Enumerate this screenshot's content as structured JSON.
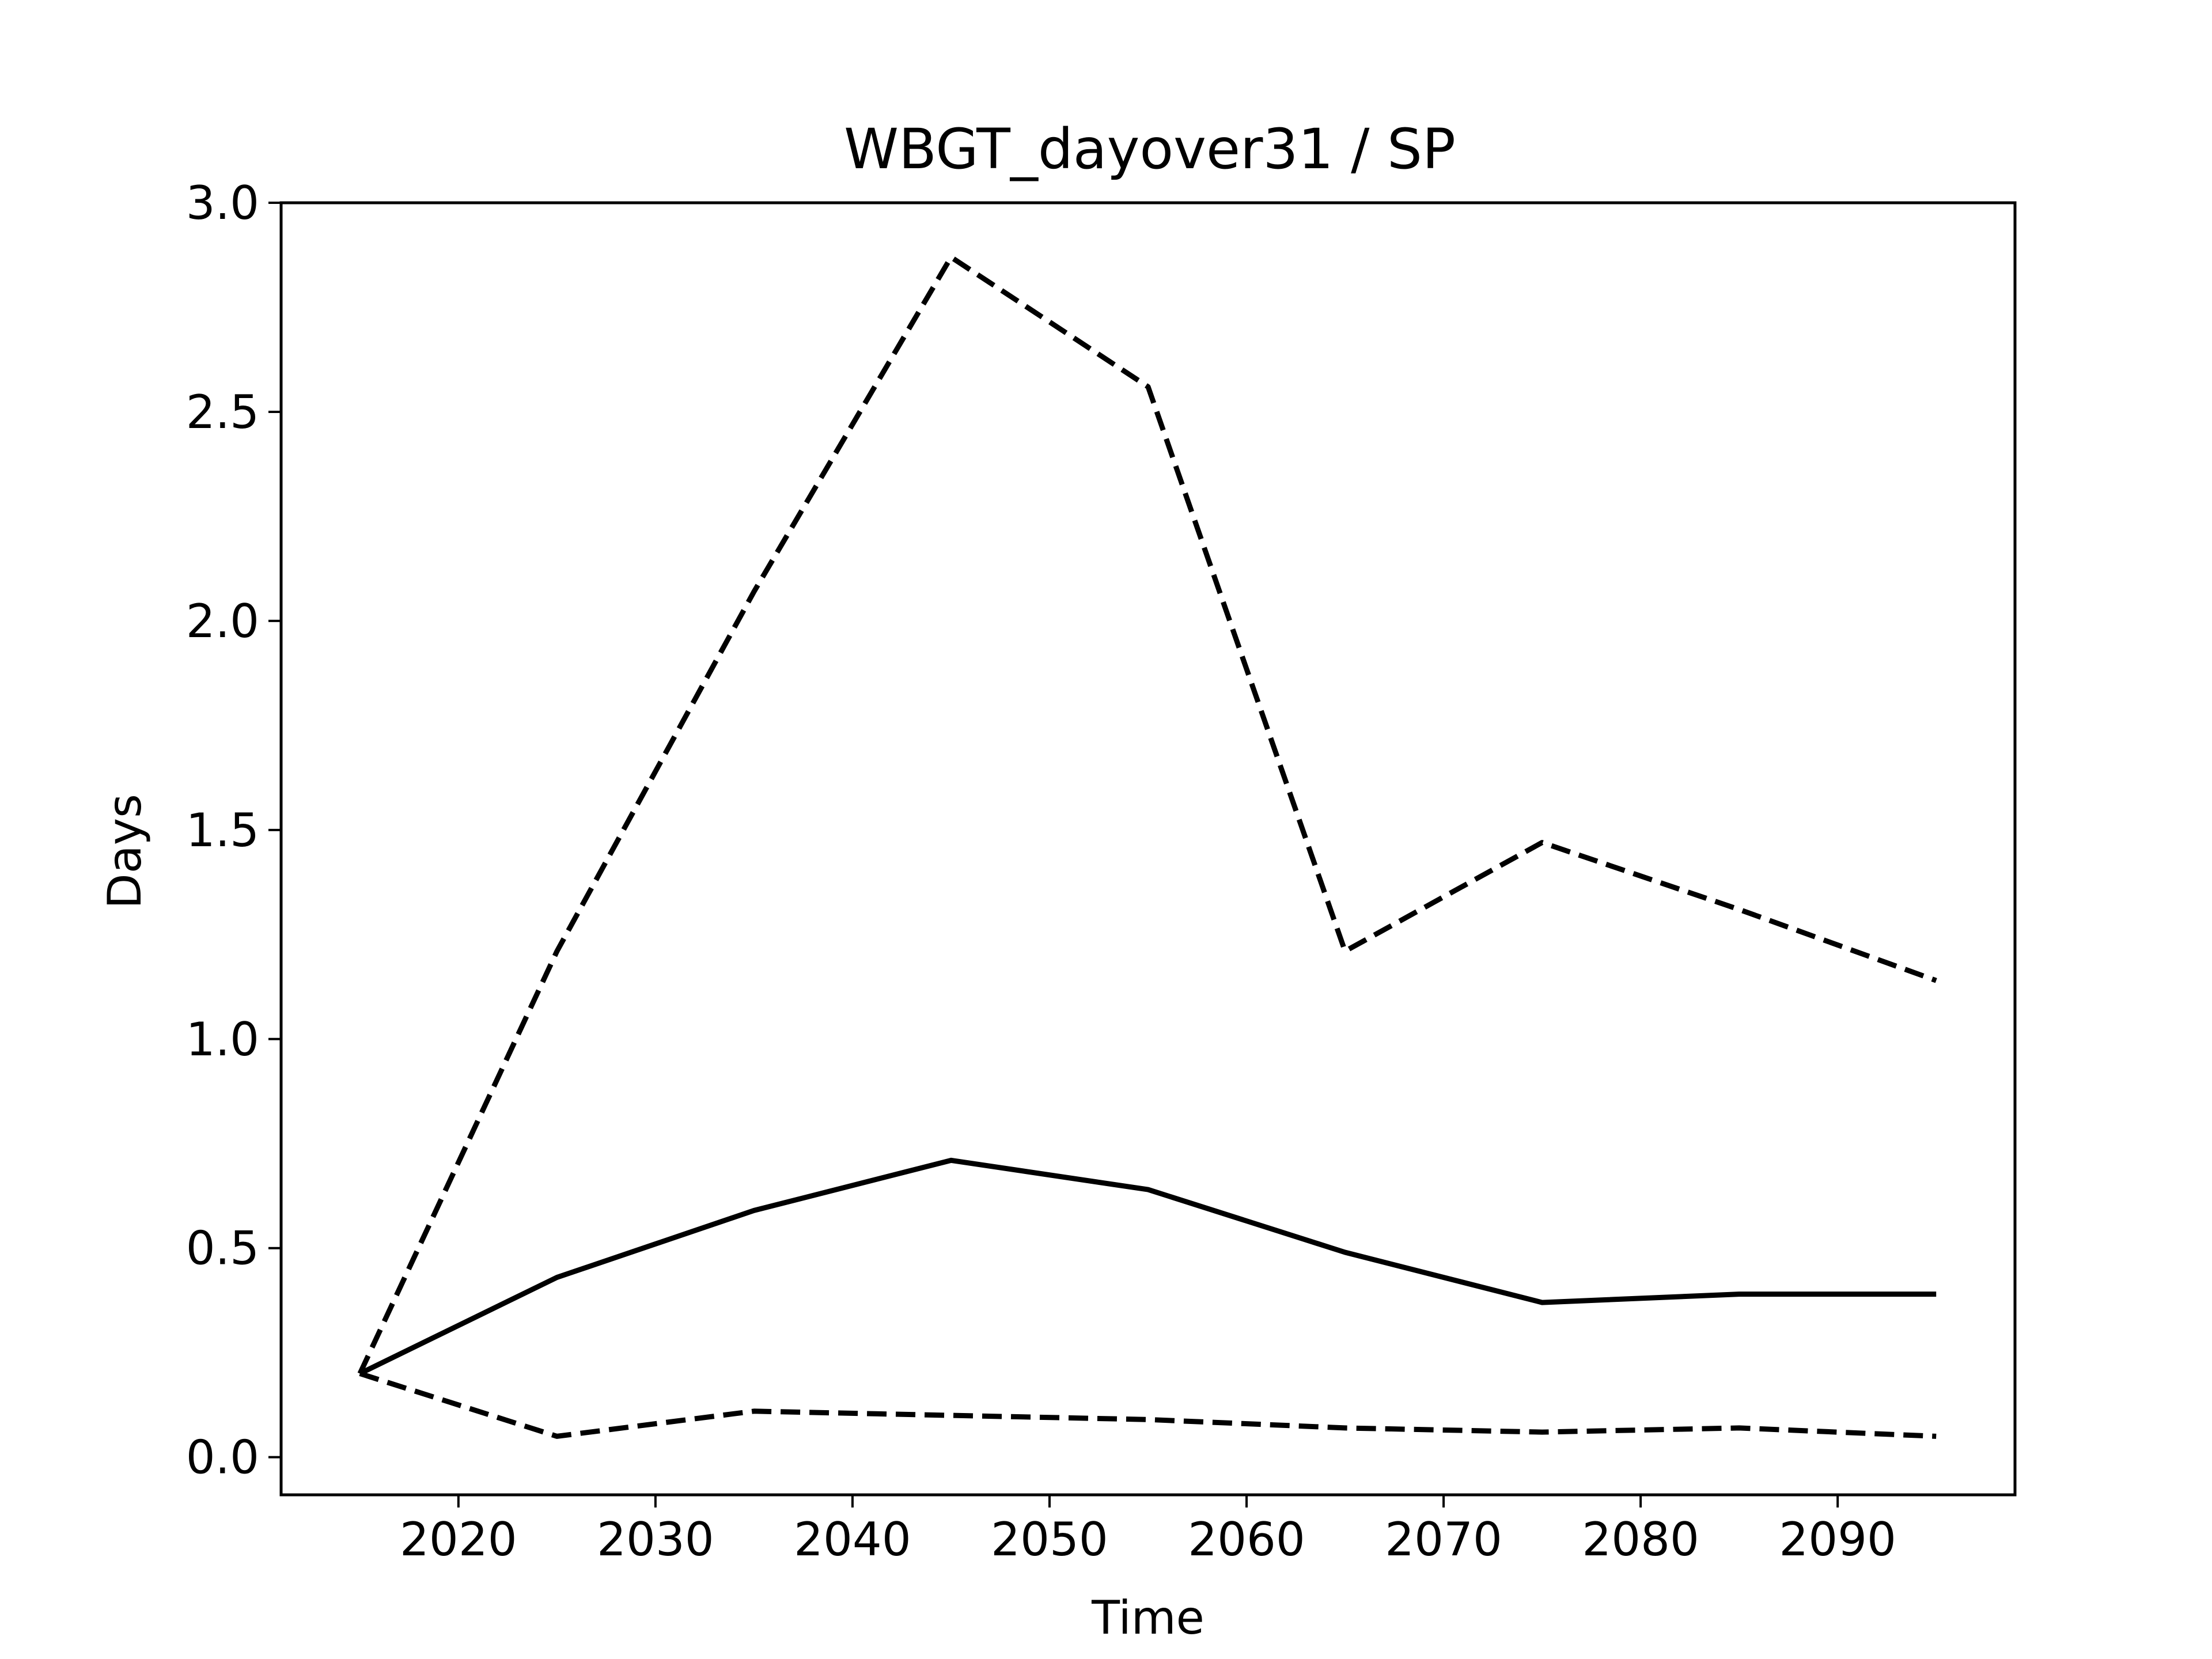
{
  "chart_data": {
    "type": "line",
    "title": "WBGT_dayover31 / SP",
    "xlabel": "Time",
    "ylabel": "Days",
    "xlim": [
      2011,
      2099
    ],
    "ylim": [
      -0.09,
      3.0
    ],
    "xticks": [
      2020,
      2030,
      2040,
      2050,
      2060,
      2070,
      2080,
      2090
    ],
    "yticks": [
      0.0,
      0.5,
      1.0,
      1.5,
      2.0,
      2.5,
      3.0
    ],
    "grid": false,
    "x": [
      2015,
      2025,
      2035,
      2045,
      2055,
      2065,
      2075,
      2085,
      2095
    ],
    "series": [
      {
        "style": "dashed",
        "color": "#000000",
        "values": [
          0.2,
          1.21,
          2.07,
          2.87,
          2.56,
          1.21,
          1.47,
          1.31,
          1.14
        ]
      },
      {
        "style": "solid",
        "color": "#000000",
        "values": [
          0.2,
          0.43,
          0.59,
          0.71,
          0.64,
          0.49,
          0.37,
          0.39,
          0.39
        ]
      },
      {
        "style": "dashed",
        "color": "#000000",
        "values": [
          0.2,
          0.05,
          0.11,
          0.1,
          0.09,
          0.07,
          0.06,
          0.07,
          0.05
        ]
      }
    ]
  }
}
